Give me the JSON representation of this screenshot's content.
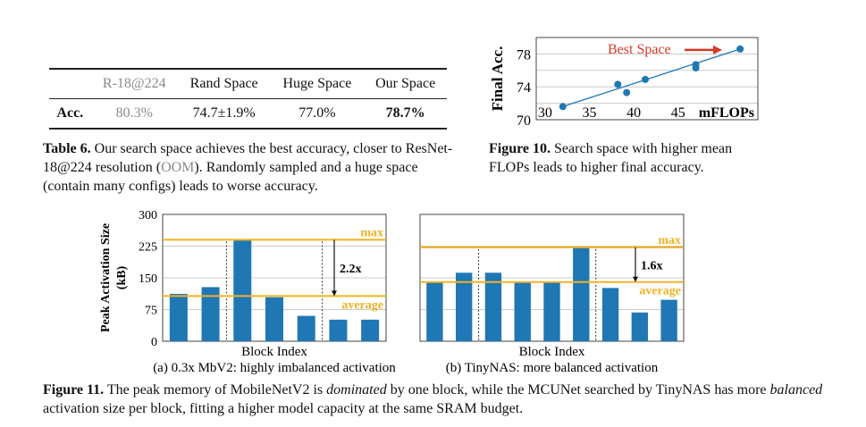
{
  "table6": {
    "header": [
      "",
      "R-18@224",
      "Rand Space",
      "Huge Space",
      "Our Space"
    ],
    "row": [
      "Acc.",
      "80.3%",
      "74.7±1.9%",
      "77.0%",
      "78.7%"
    ],
    "caption_label": "Table 6.",
    "caption_pre": " Our search space achieves the best accuracy, closer to ResNet-18@224 resolution (",
    "caption_oom": "OOM",
    "caption_post": "). Randomly sampled and a huge space (contain many configs) leads to worse accuracy."
  },
  "fig10": {
    "caption_label": "Figure 10.",
    "caption_text": " Search space with higher mean FLOPs leads to higher final accuracy."
  },
  "fig11": {
    "caption_label": "Figure 11.",
    "caption_1": " The peak memory of MobileNetV2 is ",
    "caption_em1": "dominated",
    "caption_2": " by one block, while the MCUNet searched by TinyNAS has more ",
    "caption_em2": "balanced",
    "caption_3": " activation size per block, fitting a higher model capacity at the same SRAM budget."
  },
  "colors": {
    "bar": "#1f77b4",
    "line": "#f0b323",
    "arrow": "#d93a26"
  },
  "chart_data": [
    {
      "type": "scatter",
      "ylabel": "Final Acc.",
      "xlabel": "mFLOPs",
      "xticks": [
        30,
        35,
        40,
        45
      ],
      "yticks": [
        70,
        74,
        78
      ],
      "xlim": [
        29,
        54
      ],
      "ylim": [
        70,
        80
      ],
      "grid": true,
      "points": [
        [
          32,
          71.6
        ],
        [
          38.2,
          74.3
        ],
        [
          39.2,
          73.3
        ],
        [
          41.3,
          74.9
        ],
        [
          47,
          76.7
        ],
        [
          47,
          76.3
        ],
        [
          52,
          78.6
        ]
      ],
      "trendline": true,
      "annotation": "Best Space"
    },
    {
      "type": "bar",
      "ylabel": "Peak Activation Size (kB)",
      "xlabel": "Block Index",
      "subtitle": "(a) 0.3x MbV2: highly imbalanced activation",
      "yticks": [
        0,
        75,
        150,
        225,
        300
      ],
      "ylim": [
        0,
        300
      ],
      "values": [
        112,
        128,
        240,
        104,
        60,
        51,
        51
      ],
      "max": 240,
      "average": 107,
      "max_label": "max",
      "average_label": "average",
      "ratio_label": "2.2x",
      "dividers_after": [
        1,
        4
      ]
    },
    {
      "type": "bar",
      "xlabel": "Block Index",
      "subtitle": "(b) TinyNAS: more balanced activation",
      "ylim": [
        0,
        300
      ],
      "values": [
        140,
        162,
        162,
        140,
        140,
        222,
        126,
        68,
        98
      ],
      "max": 222,
      "average": 140,
      "max_label": "max",
      "average_label": "average",
      "ratio_label": "1.6x",
      "dividers_after": [
        1,
        5
      ]
    }
  ]
}
